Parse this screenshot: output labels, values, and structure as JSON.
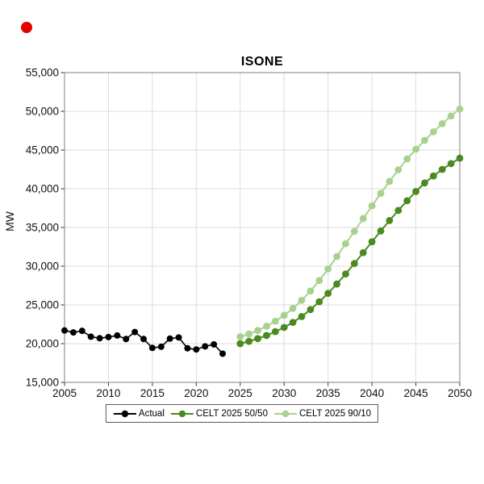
{
  "decorations": {
    "red_dot_color": "#e50000"
  },
  "chart_data": {
    "type": "line",
    "title": "ISONE",
    "xlabel": "",
    "ylabel": "MW",
    "xlim": [
      2005,
      2050
    ],
    "ylim": [
      15000,
      55000
    ],
    "grid": true,
    "legend_position": "bottom-center",
    "x_ticks": [
      2005,
      2010,
      2015,
      2020,
      2025,
      2030,
      2035,
      2040,
      2045,
      2050
    ],
    "y_ticks": [
      15000,
      20000,
      25000,
      30000,
      35000,
      40000,
      45000,
      50000,
      55000
    ],
    "y_tick_labels": [
      "15,000",
      "20,000",
      "25,000",
      "30,000",
      "35,000",
      "40,000",
      "45,000",
      "50,000",
      "55,000"
    ],
    "series": [
      {
        "name": "Actual",
        "color": "#000000",
        "x": [
          2005,
          2006,
          2007,
          2008,
          2009,
          2010,
          2011,
          2012,
          2013,
          2014,
          2015,
          2016,
          2017,
          2018,
          2019,
          2020,
          2021,
          2022,
          2023
        ],
        "values": [
          21700,
          21450,
          21650,
          20900,
          20700,
          20850,
          21050,
          20600,
          21500,
          20600,
          19450,
          19600,
          20650,
          20800,
          19400,
          19250,
          19650,
          19900,
          18700
        ]
      },
      {
        "name": "CELT 2025 50/50",
        "color": "#4a8a20",
        "x": [
          2025,
          2026,
          2027,
          2028,
          2029,
          2030,
          2031,
          2032,
          2033,
          2034,
          2035,
          2036,
          2037,
          2038,
          2039,
          2040,
          2041,
          2042,
          2043,
          2044,
          2045,
          2046,
          2047,
          2048,
          2049,
          2050
        ],
        "values": [
          20000,
          20300,
          20650,
          21050,
          21550,
          22100,
          22750,
          23500,
          24400,
          25400,
          26500,
          27700,
          29000,
          30350,
          31750,
          33150,
          34550,
          35900,
          37200,
          38450,
          39650,
          40750,
          41650,
          42500,
          43250,
          43950
        ]
      },
      {
        "name": "CELT 2025 90/10",
        "color": "#a9d18e",
        "x": [
          2025,
          2026,
          2027,
          2028,
          2029,
          2030,
          2031,
          2032,
          2033,
          2034,
          2035,
          2036,
          2037,
          2038,
          2039,
          2040,
          2041,
          2042,
          2043,
          2044,
          2045,
          2046,
          2047,
          2048,
          2049,
          2050
        ],
        "values": [
          20900,
          21250,
          21700,
          22250,
          22900,
          23650,
          24550,
          25600,
          26800,
          28150,
          29650,
          31250,
          32900,
          34500,
          36150,
          37800,
          39400,
          40950,
          42450,
          43850,
          45100,
          46250,
          47350,
          48400,
          49400,
          50300
        ]
      }
    ]
  }
}
